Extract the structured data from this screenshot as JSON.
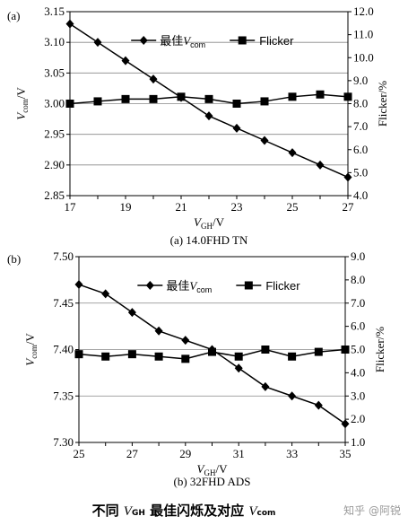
{
  "chart_data": [
    {
      "panel": "(a)",
      "type": "line",
      "caption": "(a) 14.0FHD TN",
      "x": [
        17,
        18,
        19,
        20,
        21,
        22,
        23,
        24,
        25,
        26,
        27
      ],
      "xlim": [
        17,
        27
      ],
      "x_ticks": [
        "17",
        "19",
        "21",
        "23",
        "25",
        "27"
      ],
      "xlabel": {
        "main": "V",
        "sub": "GH",
        "unit": "/V"
      },
      "ylim_left": [
        2.85,
        3.15
      ],
      "y_ticks_left": [
        "2.85",
        "2.90",
        "2.95",
        "3.00",
        "3.05",
        "3.10",
        "3.15"
      ],
      "ylabel_left": {
        "main": "V",
        "sub": "com",
        "unit": "/V"
      },
      "ylim_right": [
        4.0,
        12.0
      ],
      "y_ticks_right": [
        "4.0",
        "5.0",
        "6.0",
        "7.0",
        "8.0",
        "9.0",
        "10.0",
        "11.0",
        "12.0"
      ],
      "ylabel_right": "Flicker/%",
      "grid": "horizontal",
      "legend_position": "top",
      "series": [
        {
          "name": "最佳",
          "name_italic": "V",
          "name_sub": "com",
          "axis": "left",
          "marker": "diamond",
          "values": [
            3.13,
            3.1,
            3.07,
            3.04,
            3.01,
            2.98,
            2.96,
            2.94,
            2.92,
            2.9,
            2.88
          ]
        },
        {
          "name": "Flicker",
          "axis": "right",
          "marker": "square",
          "values": [
            8.0,
            8.1,
            8.2,
            8.2,
            8.3,
            8.2,
            8.0,
            8.1,
            8.3,
            8.4,
            8.3
          ]
        }
      ]
    },
    {
      "panel": "(b)",
      "type": "line",
      "caption": "(b) 32FHD ADS",
      "x": [
        25,
        26,
        27,
        28,
        29,
        30,
        31,
        32,
        33,
        34,
        35
      ],
      "xlim": [
        25,
        35
      ],
      "x_ticks": [
        "25",
        "27",
        "29",
        "31",
        "33",
        "35"
      ],
      "xlabel": {
        "main": "V",
        "sub": "GH",
        "unit": "/V"
      },
      "ylim_left": [
        7.3,
        7.5
      ],
      "y_ticks_left": [
        "7.30",
        "7.35",
        "7.40",
        "7.45",
        "7.50"
      ],
      "ylabel_left": {
        "main": "V",
        "sub": "com",
        "unit": "/V"
      },
      "ylim_right": [
        1.0,
        9.0
      ],
      "y_ticks_right": [
        "1.0",
        "2.0",
        "3.0",
        "4.0",
        "5.0",
        "6.0",
        "7.0",
        "8.0",
        "9.0"
      ],
      "ylabel_right": "Flicker/%",
      "grid": "horizontal",
      "legend_position": "top",
      "series": [
        {
          "name": "最佳",
          "name_italic": "V",
          "name_sub": "com",
          "axis": "left",
          "marker": "diamond",
          "values": [
            7.47,
            7.46,
            7.44,
            7.42,
            7.41,
            7.4,
            7.38,
            7.36,
            7.35,
            7.34,
            7.32
          ]
        },
        {
          "name": "Flicker",
          "axis": "right",
          "marker": "square",
          "values": [
            4.8,
            4.7,
            4.8,
            4.7,
            4.6,
            4.9,
            4.7,
            5.0,
            4.7,
            4.9,
            5.0
          ]
        }
      ]
    }
  ],
  "footer": {
    "caption_pre": "不同 ",
    "caption_v1": "V",
    "caption_sub1": "GH",
    "caption_mid": " 最佳闪烁及对应 ",
    "caption_v2": "V",
    "caption_sub2": "com",
    "watermark": "知乎 @阿锐"
  }
}
